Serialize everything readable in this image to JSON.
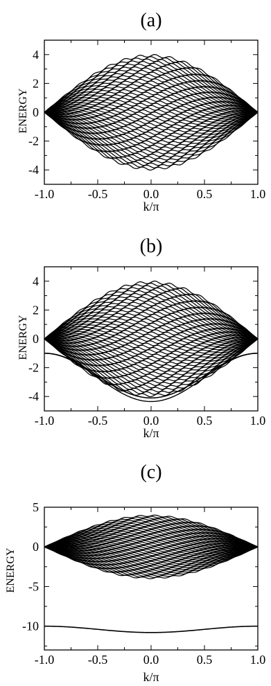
{
  "chart_data": [
    {
      "type": "line",
      "panel_label": "(a)",
      "xlabel": "k/π",
      "ylabel": "ENERGY",
      "xlim": [
        -1.0,
        1.0
      ],
      "ylim": [
        -5,
        5
      ],
      "xticks": [
        "-1.0",
        "-0.5",
        "0.0",
        "0.5",
        "1.0"
      ],
      "yticks": [
        "-4",
        "-2",
        "0",
        "2",
        "4"
      ],
      "xtick_values": [
        -1.0,
        -0.5,
        0.0,
        0.5,
        1.0
      ],
      "ytick_values": [
        -4,
        -2,
        0,
        2,
        4
      ],
      "band_envelope": {
        "k": [
          -1.0,
          -0.5,
          0.0,
          0.5,
          1.0
        ],
        "upper": [
          0.0,
          2.8,
          4.0,
          2.8,
          0.0
        ],
        "lower": [
          0.0,
          -2.8,
          -4.0,
          -2.8,
          0.0
        ]
      },
      "bound_states": []
    },
    {
      "type": "line",
      "panel_label": "(b)",
      "xlabel": "k/π",
      "ylabel": "ENERGY",
      "xlim": [
        -1.0,
        1.0
      ],
      "ylim": [
        -5,
        5
      ],
      "xticks": [
        "-1.0",
        "-0.5",
        "0.0",
        "0.5",
        "1.0"
      ],
      "yticks": [
        "-4",
        "-2",
        "0",
        "2",
        "4"
      ],
      "xtick_values": [
        -1.0,
        -0.5,
        0.0,
        0.5,
        1.0
      ],
      "ytick_values": [
        -4,
        -2,
        0,
        2,
        4
      ],
      "band_envelope": {
        "k": [
          -1.0,
          -0.5,
          0.0,
          0.5,
          1.0
        ],
        "upper": [
          0.0,
          2.8,
          4.0,
          2.8,
          0.0
        ],
        "lower": [
          0.0,
          -2.8,
          -4.0,
          -2.8,
          0.0
        ]
      },
      "bound_states": [
        {
          "k": [
            -1.0,
            -0.5,
            0.0,
            0.5,
            1.0
          ],
          "energy": [
            -1.0,
            -3.0,
            -4.1,
            -3.0,
            -1.0
          ]
        }
      ]
    },
    {
      "type": "line",
      "panel_label": "(c)",
      "xlabel": "k/π",
      "ylabel": "ENERGY",
      "xlim": [
        -1.0,
        1.0
      ],
      "ylim": [
        -13,
        5
      ],
      "xticks": [
        "-1.0",
        "-0.5",
        "0.0",
        "0.5",
        "1.0"
      ],
      "yticks": [
        "-10",
        "-5",
        "0",
        "5"
      ],
      "xtick_values": [
        -1.0,
        -0.5,
        0.0,
        0.5,
        1.0
      ],
      "ytick_values": [
        -10,
        -5,
        0,
        5
      ],
      "band_envelope": {
        "k": [
          -1.0,
          -0.5,
          0.0,
          0.5,
          1.0
        ],
        "upper": [
          0.0,
          2.8,
          4.0,
          2.8,
          0.0
        ],
        "lower": [
          0.0,
          -2.8,
          -4.0,
          -2.8,
          0.0
        ]
      },
      "bound_states": [
        {
          "k": [
            -1.0,
            -0.5,
            0.0,
            0.5,
            1.0
          ],
          "energy": [
            -10.0,
            -10.4,
            -10.8,
            -10.4,
            -10.0
          ]
        }
      ]
    }
  ]
}
